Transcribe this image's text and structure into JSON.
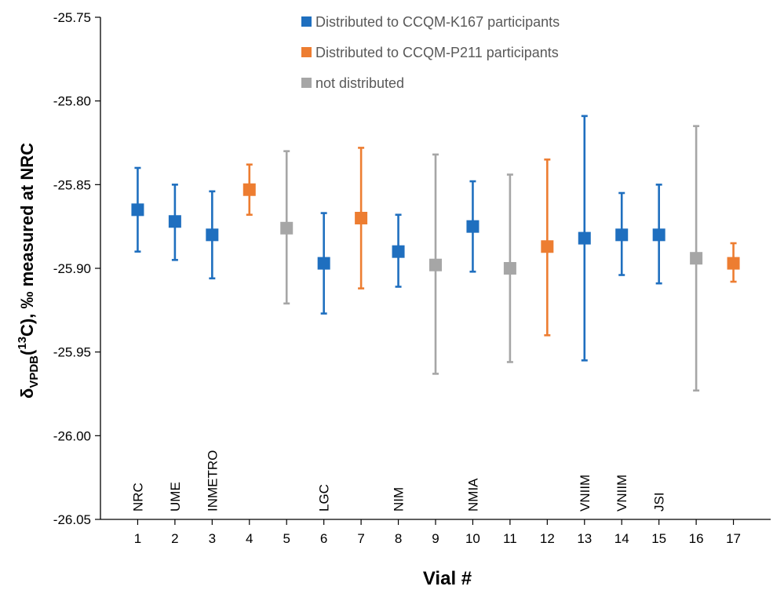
{
  "chart_data": {
    "type": "scatter",
    "xlabel": "Vial #",
    "ylabel": {
      "prefix": "δ",
      "sub": "VPDB",
      "open": "(",
      "sup": "13",
      "rest": "C), ‰ measured at NRC"
    },
    "ylim": [
      -26.05,
      -25.75
    ],
    "xlim": [
      0,
      18
    ],
    "yticks": [
      "-25.75",
      "-25.80",
      "-25.85",
      "-25.90",
      "-25.95",
      "-26.00",
      "-26.05"
    ],
    "xticks": [
      "1",
      "2",
      "3",
      "4",
      "5",
      "6",
      "7",
      "8",
      "9",
      "10",
      "11",
      "12",
      "13",
      "14",
      "15",
      "16",
      "17"
    ],
    "legend_position": "top-center",
    "grid": false,
    "series": [
      {
        "name": "Distributed to CCQM-K167 participants",
        "color": "#1f6fbf",
        "points": [
          {
            "x": 1,
            "y": -25.865,
            "low": -25.89,
            "high": -25.84
          },
          {
            "x": 2,
            "y": -25.872,
            "low": -25.895,
            "high": -25.85
          },
          {
            "x": 3,
            "y": -25.88,
            "low": -25.906,
            "high": -25.854
          },
          {
            "x": 6,
            "y": -25.897,
            "low": -25.927,
            "high": -25.867
          },
          {
            "x": 8,
            "y": -25.89,
            "low": -25.911,
            "high": -25.868
          },
          {
            "x": 10,
            "y": -25.875,
            "low": -25.902,
            "high": -25.848
          },
          {
            "x": 13,
            "y": -25.882,
            "low": -25.955,
            "high": -25.809
          },
          {
            "x": 14,
            "y": -25.88,
            "low": -25.904,
            "high": -25.855
          },
          {
            "x": 15,
            "y": -25.88,
            "low": -25.909,
            "high": -25.85
          }
        ]
      },
      {
        "name": "Distributed to CCQM-P211 participants",
        "color": "#ed7d31",
        "points": [
          {
            "x": 4,
            "y": -25.853,
            "low": -25.868,
            "high": -25.838
          },
          {
            "x": 7,
            "y": -25.87,
            "low": -25.912,
            "high": -25.828
          },
          {
            "x": 12,
            "y": -25.887,
            "low": -25.94,
            "high": -25.835
          },
          {
            "x": 17,
            "y": -25.897,
            "low": -25.908,
            "high": -25.885
          }
        ]
      },
      {
        "name": "not distributed",
        "color": "#a6a6a6",
        "points": [
          {
            "x": 5,
            "y": -25.876,
            "low": -25.921,
            "high": -25.83
          },
          {
            "x": 9,
            "y": -25.898,
            "low": -25.963,
            "high": -25.832
          },
          {
            "x": 11,
            "y": -25.9,
            "low": -25.956,
            "high": -25.844
          },
          {
            "x": 16,
            "y": -25.894,
            "low": -25.973,
            "high": -25.815
          }
        ]
      }
    ],
    "annotations": [
      {
        "x": 1,
        "text": "NRC"
      },
      {
        "x": 2,
        "text": "UME"
      },
      {
        "x": 3,
        "text": "INMETRO"
      },
      {
        "x": 6,
        "text": "LGC"
      },
      {
        "x": 8,
        "text": "NIM"
      },
      {
        "x": 10,
        "text": "NMIA"
      },
      {
        "x": 13,
        "text": "VNIIM"
      },
      {
        "x": 14,
        "text": "VNIIM"
      },
      {
        "x": 15,
        "text": "JSI"
      }
    ]
  }
}
